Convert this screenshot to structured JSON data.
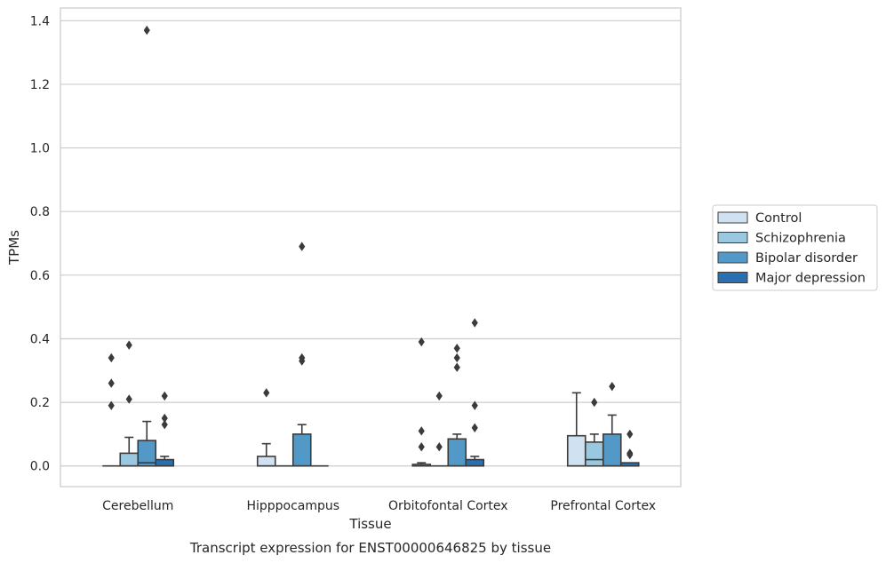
{
  "chart_data": {
    "type": "box",
    "title": "",
    "caption": "Transcript expression for ENST00000646825 by tissue",
    "xlabel": "Tissue",
    "ylabel": "TPMs",
    "ylim": [
      -0.065,
      1.44
    ],
    "yticks": [
      0.0,
      0.2,
      0.4,
      0.6,
      0.8,
      1.0,
      1.2,
      1.4
    ],
    "ytick_labels": [
      "0.0",
      "0.2",
      "0.4",
      "0.6",
      "0.8",
      "1.0",
      "1.2",
      "1.4"
    ],
    "grid": true,
    "legend_position": "right",
    "categories": [
      "Cerebellum",
      "Hipppocampus",
      "Orbitofontal Cortex",
      "Prefrontal Cortex"
    ],
    "series": [
      {
        "name": "Control",
        "color": "#d0e1f2",
        "boxes": [
          {
            "q1": 0,
            "median": 0,
            "q3": 0,
            "whisker_low": 0,
            "whisker_high": 0,
            "outliers": [
              0.34,
              0.26,
              0.19
            ]
          },
          {
            "q1": 0,
            "median": 0,
            "q3": 0.03,
            "whisker_low": 0,
            "whisker_high": 0.07,
            "outliers": [
              0.23
            ]
          },
          {
            "q1": 0,
            "median": 0,
            "q3": 0.005,
            "whisker_low": 0,
            "whisker_high": 0.01,
            "outliers": [
              0.39,
              0.11,
              0.06
            ]
          },
          {
            "q1": 0,
            "median": 0,
            "q3": 0.095,
            "whisker_low": 0,
            "whisker_high": 0.23,
            "outliers": []
          }
        ]
      },
      {
        "name": "Schizophrenia",
        "color": "#9ac8e0",
        "boxes": [
          {
            "q1": 0,
            "median": 0,
            "q3": 0.04,
            "whisker_low": 0,
            "whisker_high": 0.09,
            "outliers": [
              0.38,
              0.21
            ]
          },
          {
            "q1": 0,
            "median": 0,
            "q3": 0,
            "whisker_low": 0,
            "whisker_high": 0,
            "outliers": []
          },
          {
            "q1": 0,
            "median": 0,
            "q3": 0,
            "whisker_low": 0,
            "whisker_high": 0,
            "outliers": [
              0.22,
              0.06
            ]
          },
          {
            "q1": 0,
            "median": 0.02,
            "q3": 0.075,
            "whisker_low": 0,
            "whisker_high": 0.1,
            "outliers": [
              0.2
            ]
          }
        ]
      },
      {
        "name": "Bipolar disorder",
        "color": "#5299c7",
        "boxes": [
          {
            "q1": 0,
            "median": 0.01,
            "q3": 0.08,
            "whisker_low": 0,
            "whisker_high": 0.14,
            "outliers": [
              1.37
            ]
          },
          {
            "q1": 0,
            "median": 0,
            "q3": 0.1,
            "whisker_low": 0,
            "whisker_high": 0.13,
            "outliers": [
              0.69,
              0.34,
              0.33
            ]
          },
          {
            "q1": 0,
            "median": 0,
            "q3": 0.085,
            "whisker_low": 0,
            "whisker_high": 0.1,
            "outliers": [
              0.37,
              0.34,
              0.31
            ]
          },
          {
            "q1": 0,
            "median": 0,
            "q3": 0.1,
            "whisker_low": 0,
            "whisker_high": 0.16,
            "outliers": [
              0.25
            ]
          }
        ]
      },
      {
        "name": "Major depression",
        "color": "#2a70b0",
        "boxes": [
          {
            "q1": 0,
            "median": 0,
            "q3": 0.02,
            "whisker_low": 0,
            "whisker_high": 0.03,
            "outliers": [
              0.22,
              0.15,
              0.13
            ]
          },
          {
            "q1": 0,
            "median": 0,
            "q3": 0,
            "whisker_low": 0,
            "whisker_high": 0,
            "outliers": []
          },
          {
            "q1": 0,
            "median": 0,
            "q3": 0.02,
            "whisker_low": 0,
            "whisker_high": 0.03,
            "outliers": [
              0.45,
              0.19,
              0.12
            ]
          },
          {
            "q1": 0,
            "median": 0,
            "q3": 0.01,
            "whisker_low": 0,
            "whisker_high": 0.01,
            "outliers": [
              0.1,
              0.04,
              0.035
            ]
          }
        ]
      }
    ]
  }
}
